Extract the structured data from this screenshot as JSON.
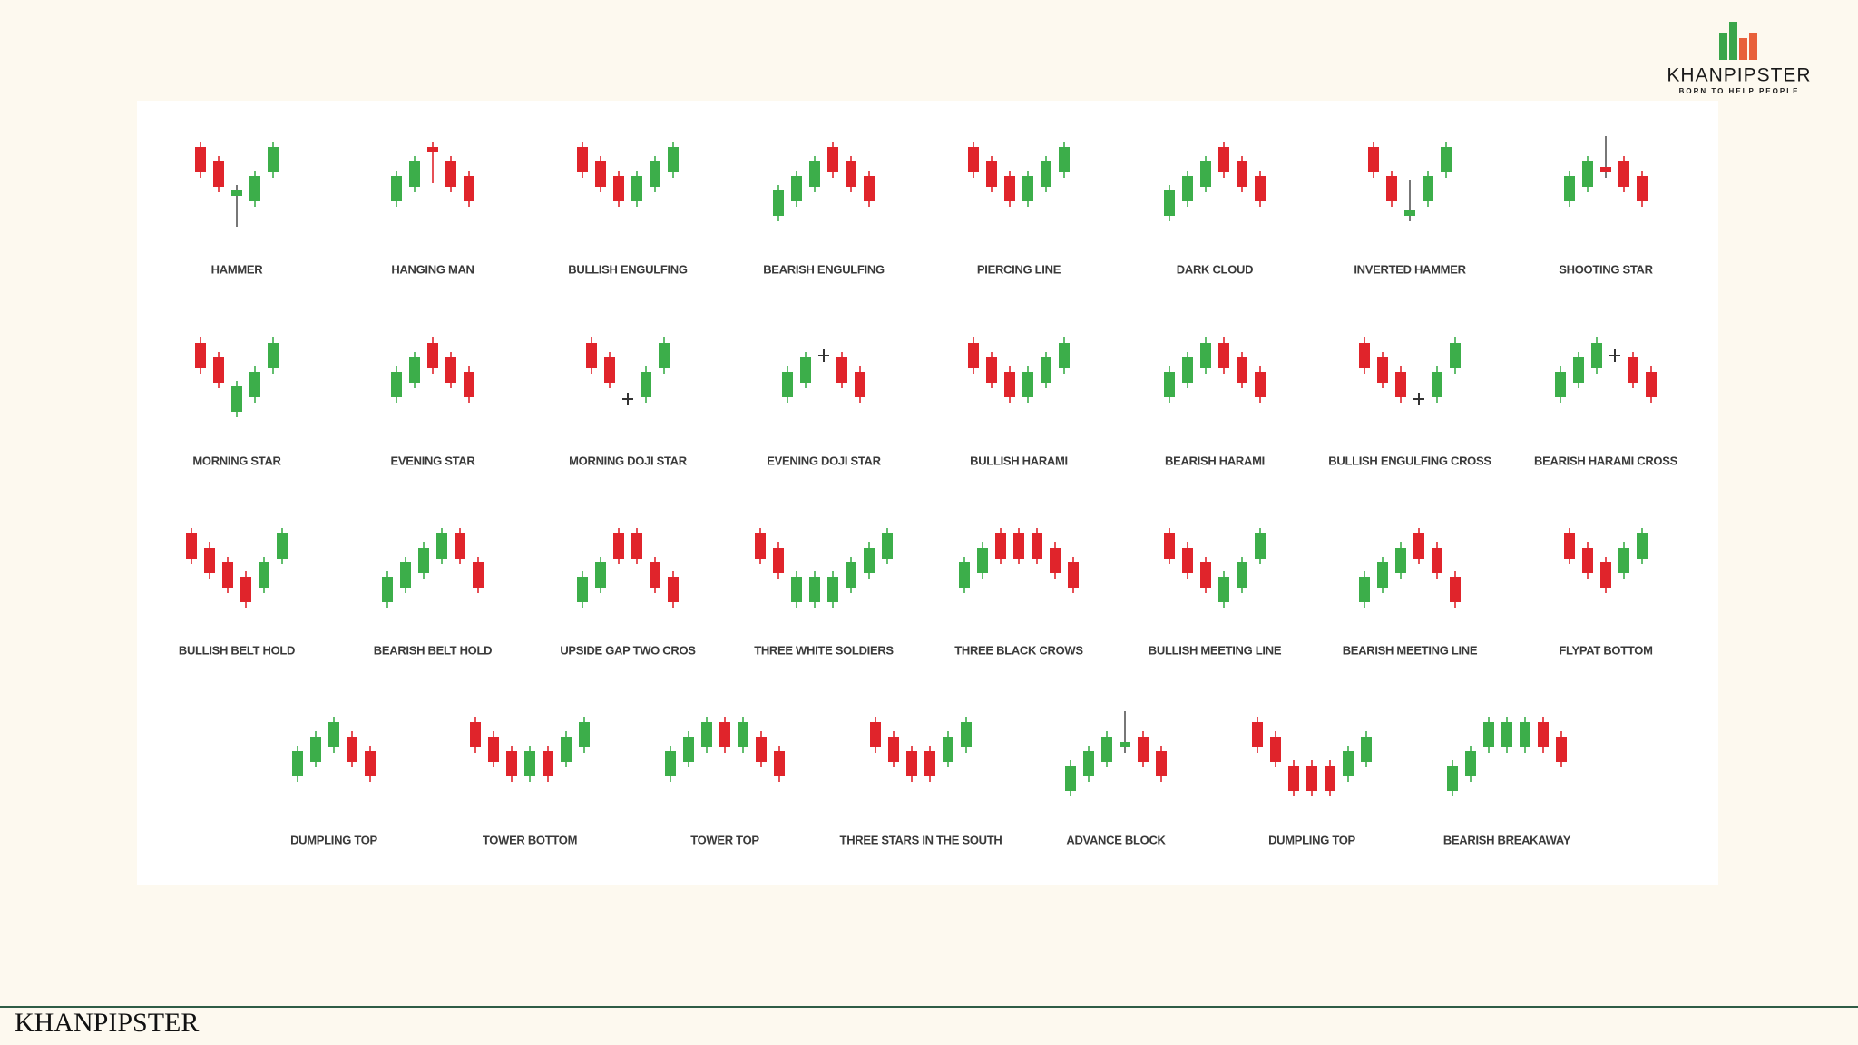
{
  "logo": {
    "name": "KHANPIPSTER",
    "tagline": "BORN TO HELP PEOPLE"
  },
  "pattern_rows": [
    [
      "HAMMER",
      "HANGING MAN",
      "BULLISH ENGULFING",
      "BEARISH ENGULFING",
      "PIERCING LINE",
      "DARK CLOUD",
      "INVERTED HAMMER",
      "SHOOTING STAR"
    ],
    [
      "MORNING STAR",
      "EVENING STAR",
      "MORNING DOJI STAR",
      "EVENING DOJI STAR",
      "BULLISH HARAMI",
      "BEARISH HARAMI",
      "BULLISH ENGULFING CROSS",
      "BEARISH HARAMI CROSS"
    ],
    [
      "BULLISH BELT HOLD",
      "BEARISH BELT HOLD",
      "UPSIDE GAP TWO CROS",
      "THREE WHITE SOLDIERS",
      "THREE BLACK CROWS",
      "BULLISH MEETING LINE",
      "BEARISH MEETING LINE",
      "FLYPAT BOTTOM"
    ],
    [
      "DUMPLING TOP",
      "TOWER BOTTOM",
      "TOWER TOP",
      "THREE STARS IN THE SOUTH",
      "ADVANCE BLOCK",
      "DUMPLING TOP",
      "BEARISH BREAKAWAY"
    ]
  ],
  "footer": "KHANPIPSTER"
}
